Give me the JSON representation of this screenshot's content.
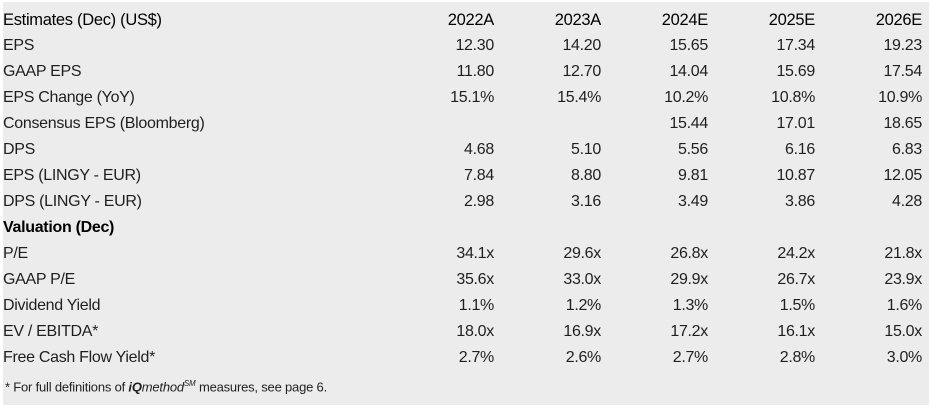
{
  "colors": {
    "panel_bg": "#ececec",
    "text": "#1f1f1f",
    "heading_text": "#000000"
  },
  "table": {
    "title": "Estimates (Dec) (US$)",
    "columns": [
      "2022A",
      "2023A",
      "2024E",
      "2025E",
      "2026E"
    ],
    "rows": [
      {
        "label": "EPS",
        "section": false,
        "values": [
          "12.30",
          "14.20",
          "15.65",
          "17.34",
          "19.23"
        ]
      },
      {
        "label": "GAAP EPS",
        "section": false,
        "values": [
          "11.80",
          "12.70",
          "14.04",
          "15.69",
          "17.54"
        ]
      },
      {
        "label": "EPS Change (YoY)",
        "section": false,
        "values": [
          "15.1%",
          "15.4%",
          "10.2%",
          "10.8%",
          "10.9%"
        ]
      },
      {
        "label": "Consensus EPS (Bloomberg)",
        "section": false,
        "values": [
          "",
          "",
          "15.44",
          "17.01",
          "18.65"
        ]
      },
      {
        "label": "DPS",
        "section": false,
        "values": [
          "4.68",
          "5.10",
          "5.56",
          "6.16",
          "6.83"
        ]
      },
      {
        "label": "EPS (LINGY - EUR)",
        "section": false,
        "values": [
          "7.84",
          "8.80",
          "9.81",
          "10.87",
          "12.05"
        ]
      },
      {
        "label": "DPS (LINGY - EUR)",
        "section": false,
        "values": [
          "2.98",
          "3.16",
          "3.49",
          "3.86",
          "4.28"
        ]
      },
      {
        "label": "Valuation (Dec)",
        "section": true,
        "values": [
          "",
          "",
          "",
          "",
          ""
        ]
      },
      {
        "label": "P/E",
        "section": false,
        "values": [
          "34.1x",
          "29.6x",
          "26.8x",
          "24.2x",
          "21.8x"
        ]
      },
      {
        "label": "GAAP P/E",
        "section": false,
        "values": [
          "35.6x",
          "33.0x",
          "29.9x",
          "26.7x",
          "23.9x"
        ]
      },
      {
        "label": "Dividend Yield",
        "section": false,
        "values": [
          "1.1%",
          "1.2%",
          "1.3%",
          "1.5%",
          "1.6%"
        ]
      },
      {
        "label": "EV / EBITDA*",
        "section": false,
        "values": [
          "18.0x",
          "16.9x",
          "17.2x",
          "16.1x",
          "15.0x"
        ]
      },
      {
        "label": "Free Cash Flow Yield*",
        "section": false,
        "values": [
          "2.7%",
          "2.6%",
          "2.7%",
          "2.8%",
          "3.0%"
        ]
      }
    ]
  },
  "footnote": {
    "prefix": "* For full definitions of ",
    "brand_bold": "iQ",
    "brand_italic": "method",
    "brand_sup": "SM",
    "suffix": " measures, see page 6."
  }
}
